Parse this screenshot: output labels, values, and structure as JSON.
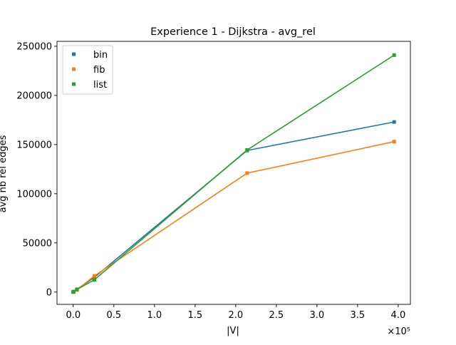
{
  "chart_data": {
    "type": "line",
    "title": "Experience 1 - Dijkstra - avg_rel",
    "xlabel": "|V|",
    "ylabel": "avg nb rel edges",
    "x_multiplier_label": "×10⁵",
    "xlim": [
      -0.2,
      4.15
    ],
    "ylim": [
      -12500,
      255000
    ],
    "x_ticks": [
      0.0,
      0.5,
      1.0,
      1.5,
      2.0,
      2.5,
      3.0,
      3.5,
      4.0
    ],
    "x_tick_labels": [
      "0.0",
      "0.5",
      "1.0",
      "1.5",
      "2.0",
      "2.5",
      "3.0",
      "3.5",
      "4.0"
    ],
    "y_ticks": [
      0,
      50000,
      100000,
      150000,
      200000,
      250000
    ],
    "y_tick_labels": [
      "0",
      "50000",
      "100000",
      "150000",
      "200000",
      "250000"
    ],
    "grid": false,
    "legend_position": "top-left",
    "series": [
      {
        "name": "bin",
        "color": "#1f77b4",
        "x": [
          0.0,
          0.005,
          0.045,
          0.26,
          2.14,
          3.95
        ],
        "y": [
          80,
          400,
          2800,
          15000,
          144000,
          173000
        ]
      },
      {
        "name": "fib",
        "color": "#ff7f0e",
        "x": [
          0.0,
          0.005,
          0.045,
          0.26,
          2.14,
          3.95
        ],
        "y": [
          60,
          300,
          2200,
          16500,
          121000,
          153000
        ]
      },
      {
        "name": "list",
        "color": "#2ca02c",
        "x": [
          0.0,
          0.005,
          0.045,
          0.26,
          2.14,
          3.95
        ],
        "y": [
          90,
          420,
          2600,
          12500,
          144500,
          241000
        ]
      }
    ]
  }
}
